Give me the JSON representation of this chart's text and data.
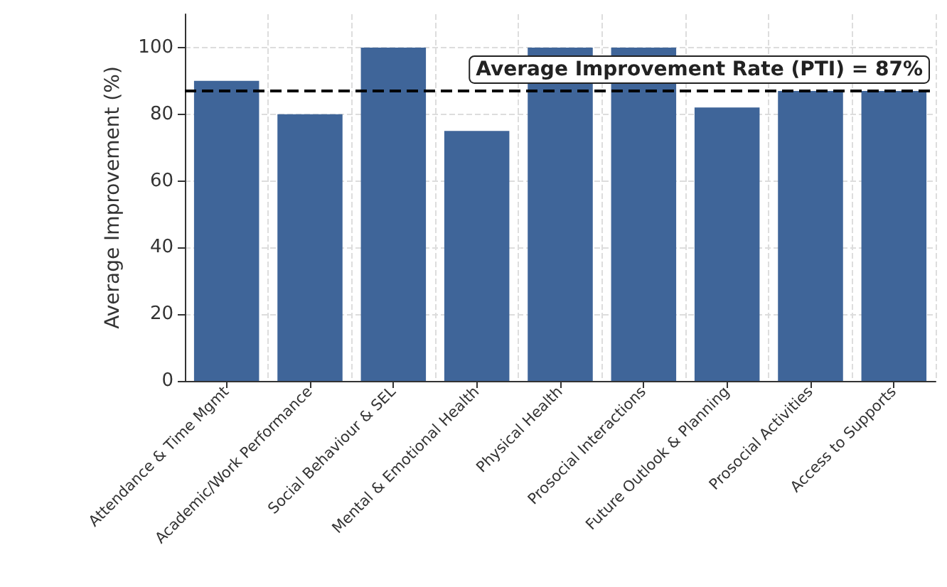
{
  "chart_data": {
    "type": "bar",
    "ylabel": "Average Improvement (%)",
    "categories": [
      "Attendance & Time Mgmt",
      "Academic/Work Performance",
      "Social Behaviour & SEL",
      "Mental & Emotional Health",
      "Physical Health",
      "Prosocial Interactions",
      "Future Outlook & Planning",
      "Prosocial Activities",
      "Access to Supports"
    ],
    "values": [
      90,
      80,
      100,
      75,
      100,
      100,
      82,
      87,
      87
    ],
    "color": "#3f6599",
    "ylim": [
      0,
      110
    ],
    "yticks": [
      0,
      20,
      40,
      60,
      80,
      100
    ],
    "grid": true,
    "ref_lines": [
      {
        "axis": "y",
        "value": 87,
        "label": "Average Improvement Rate (PTI) = 87%",
        "color": "#000000",
        "line_style": "dashed"
      }
    ]
  }
}
